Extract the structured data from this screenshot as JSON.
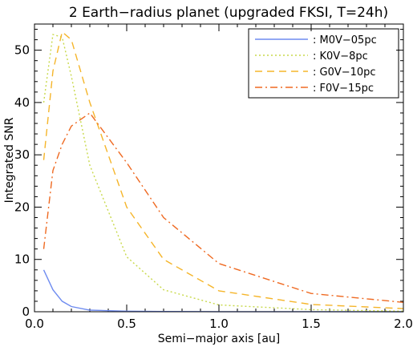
{
  "chart_data": {
    "type": "line",
    "title": "2 Earth−radius planet (upgraded FKSI, T=24h)",
    "xlabel": "Semi−major axis [au]",
    "ylabel": "Integrated SNR",
    "xlim": [
      0.0,
      2.0
    ],
    "ylim": [
      0,
      55
    ],
    "x_ticks": [
      "0.0",
      "0.5",
      "1.0",
      "1.5",
      "2.0"
    ],
    "y_ticks": [
      "0",
      "10",
      "20",
      "30",
      "40",
      "50"
    ],
    "legend_position": "top-right",
    "series": [
      {
        "name": ": M0V−05pc",
        "color": "#6f8cf0",
        "dash": "solid",
        "x": [
          0.05,
          0.1,
          0.15,
          0.2,
          0.3,
          0.5,
          0.7,
          1.0,
          1.5,
          2.0
        ],
        "y": [
          8.0,
          4.2,
          2.0,
          1.0,
          0.3,
          0.1,
          0.05,
          0.02,
          0.01,
          0.0
        ]
      },
      {
        "name": ": K0V−8pc",
        "color": "#c8d94a",
        "dash": "dotted",
        "x": [
          0.05,
          0.1,
          0.15,
          0.2,
          0.3,
          0.5,
          0.7,
          1.0,
          1.5,
          2.0
        ],
        "y": [
          40.0,
          53.0,
          52.5,
          45.0,
          28.0,
          10.5,
          4.2,
          1.3,
          0.4,
          0.1
        ]
      },
      {
        "name": ": G0V−10pc",
        "color": "#f5b52a",
        "dash": "dashed",
        "x": [
          0.05,
          0.1,
          0.15,
          0.2,
          0.3,
          0.5,
          0.7,
          1.0,
          1.5,
          2.0
        ],
        "y": [
          29.0,
          46.0,
          53.5,
          52.0,
          40.0,
          20.0,
          10.0,
          4.0,
          1.4,
          0.6
        ]
      },
      {
        "name": ": F0V−15pc",
        "color": "#ef6a22",
        "dash": "dashdot",
        "x": [
          0.05,
          0.1,
          0.15,
          0.2,
          0.3,
          0.5,
          0.7,
          1.0,
          1.5,
          2.0
        ],
        "y": [
          12.0,
          27.0,
          32.0,
          35.5,
          38.0,
          28.5,
          18.0,
          9.2,
          3.5,
          1.8
        ]
      }
    ]
  }
}
